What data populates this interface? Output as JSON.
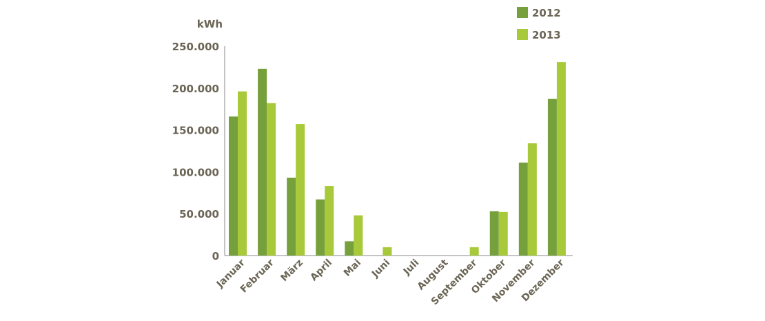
{
  "chart_data": {
    "type": "bar",
    "ylabel": "kWh",
    "ylim": [
      0,
      250000
    ],
    "yticks": [
      0,
      50000,
      100000,
      150000,
      200000,
      250000
    ],
    "ytick_labels": [
      "0",
      "50.000",
      "100.000",
      "150.000",
      "200.000",
      "250.000"
    ],
    "categories": [
      "Januar",
      "Februar",
      "März",
      "April",
      "Mai",
      "Juni",
      "Juli",
      "August",
      "September",
      "Oktober",
      "November",
      "Dezember"
    ],
    "series": [
      {
        "name": "2012",
        "color": "#76a03c",
        "values": [
          166000,
          223000,
          93000,
          67000,
          17000,
          0,
          0,
          0,
          0,
          53000,
          111000,
          187000
        ]
      },
      {
        "name": "2013",
        "color": "#a8c93a",
        "values": [
          196000,
          182000,
          157000,
          83000,
          48000,
          10000,
          0,
          0,
          10000,
          52000,
          134000,
          231000
        ]
      }
    ],
    "grid": false,
    "legend_position": "top-right",
    "axis_color": "#8a8a8a",
    "text_color": "#6b6555"
  }
}
